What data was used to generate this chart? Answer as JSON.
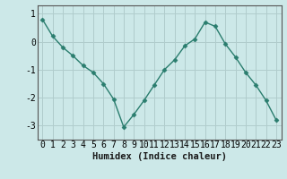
{
  "x": [
    0,
    1,
    2,
    3,
    4,
    5,
    6,
    7,
    8,
    9,
    10,
    11,
    12,
    13,
    14,
    15,
    16,
    17,
    18,
    19,
    20,
    21,
    22,
    23
  ],
  "y": [
    0.8,
    0.2,
    -0.2,
    -0.5,
    -0.85,
    -1.1,
    -1.5,
    -2.05,
    -3.05,
    -2.6,
    -2.1,
    -1.55,
    -1.0,
    -0.65,
    -0.15,
    0.1,
    0.7,
    0.55,
    -0.08,
    -0.55,
    -1.1,
    -1.55,
    -2.1,
    -2.8
  ],
  "line_color": "#2a7d6e",
  "marker": "D",
  "marker_size": 2.5,
  "bg_color": "#cce8e8",
  "grid_color": "#b0cccc",
  "xlabel": "Humidex (Indice chaleur)",
  "xlabel_fontsize": 7.5,
  "tick_fontsize": 7,
  "yticks": [
    1,
    0,
    -1,
    -2,
    -3
  ],
  "ytick_labels": [
    "1",
    "0",
    "-1",
    "-2",
    "-3"
  ],
  "ylim": [
    -3.5,
    1.3
  ],
  "xlim": [
    -0.5,
    23.5
  ],
  "figwidth": 3.2,
  "figheight": 2.0,
  "dpi": 100
}
